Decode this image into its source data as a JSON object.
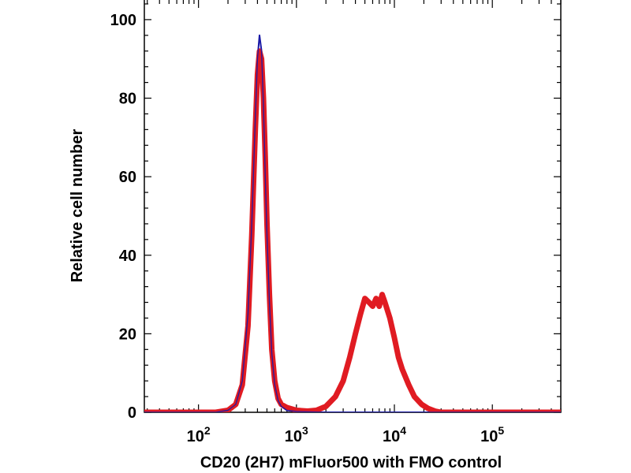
{
  "chart_data": {
    "type": "line",
    "title": "",
    "xlabel": "CD20 (2H7) mFluor500 with FMO control",
    "ylabel": "Relative cell number",
    "xscale": "log",
    "xlim": [
      28,
      500000
    ],
    "ylim": [
      0,
      105
    ],
    "x_ticks": [
      {
        "value": 100,
        "base": "10",
        "exp": "2"
      },
      {
        "value": 1000,
        "base": "10",
        "exp": "3"
      },
      {
        "value": 10000,
        "base": "10",
        "exp": "4"
      },
      {
        "value": 100000,
        "base": "10",
        "exp": "5"
      }
    ],
    "y_ticks": [
      0,
      20,
      40,
      60,
      80,
      100
    ],
    "grid": false,
    "series": [
      {
        "name": "FMO control",
        "color": "#1a1aa6",
        "x": [
          28,
          150,
          200,
          240,
          280,
          320,
          350,
          380,
          400,
          420,
          440,
          460,
          480,
          500,
          530,
          560,
          600,
          650,
          700,
          800,
          1000,
          2000,
          10000,
          100000,
          500000
        ],
        "y": [
          0,
          0,
          0.5,
          2,
          8,
          25,
          48,
          75,
          90,
          96,
          92,
          78,
          60,
          45,
          28,
          15,
          7,
          3,
          1.5,
          0.5,
          0.2,
          0,
          0,
          0,
          0
        ]
      },
      {
        "name": "CD20 (2H7) mFluor500",
        "color": "#e01b22",
        "x": [
          28,
          150,
          200,
          240,
          280,
          320,
          350,
          380,
          400,
          420,
          440,
          460,
          480,
          500,
          530,
          560,
          600,
          650,
          700,
          800,
          1000,
          1300,
          1600,
          2000,
          2500,
          3000,
          3500,
          4000,
          4500,
          5000,
          5500,
          6000,
          6500,
          7000,
          7500,
          8000,
          9000,
          10000,
          11000,
          12000,
          14000,
          16000,
          19000,
          22000,
          26000,
          30000,
          100000,
          500000
        ],
        "y": [
          0,
          0,
          0.5,
          2,
          7,
          22,
          45,
          72,
          86,
          92,
          90,
          80,
          65,
          48,
          30,
          16,
          8,
          3.5,
          2,
          1.2,
          0.5,
          0.3,
          0.5,
          1.5,
          4,
          8,
          14,
          20,
          25,
          29,
          28,
          27,
          29,
          27,
          30,
          28,
          24,
          19,
          14,
          11,
          7,
          4,
          2,
          1,
          0.3,
          0,
          0,
          0
        ]
      }
    ]
  }
}
